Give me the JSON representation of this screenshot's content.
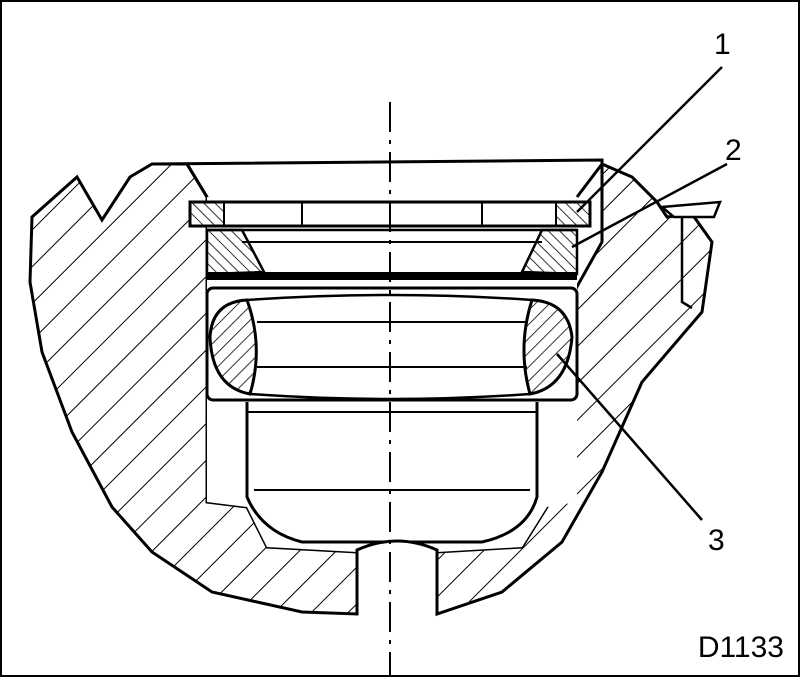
{
  "callouts": {
    "c1": "1",
    "c2": "2",
    "c3": "3"
  },
  "figure_code": "D1133",
  "colors": {
    "ink": "#000000",
    "paper": "#ffffff"
  }
}
